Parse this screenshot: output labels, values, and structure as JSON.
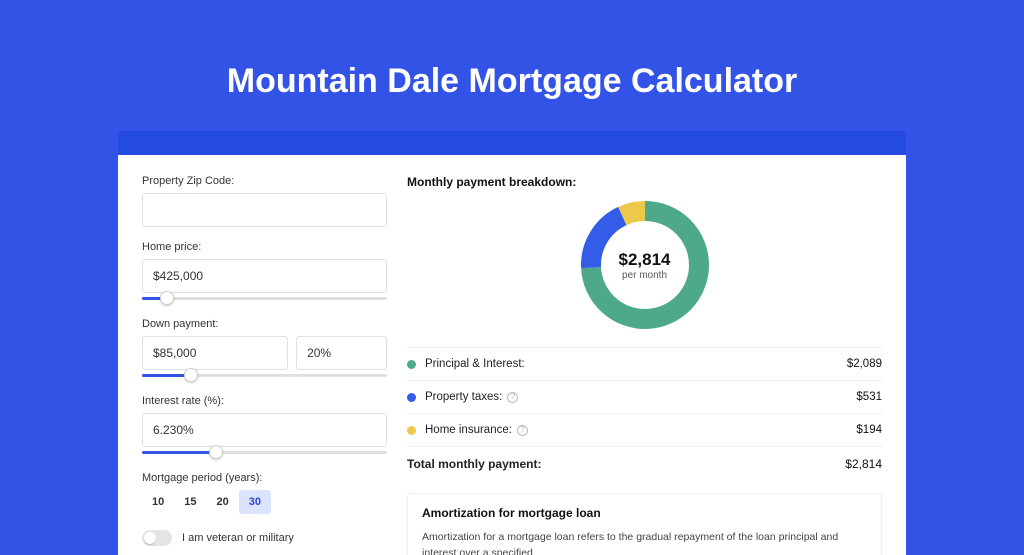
{
  "page": {
    "title": "Mountain Dale Mortgage Calculator",
    "background_color": "#3353e7",
    "band_color": "#244ae0"
  },
  "form": {
    "zip": {
      "label": "Property Zip Code:",
      "value": ""
    },
    "price": {
      "label": "Home price:",
      "value": "$425,000",
      "slider_pct": 10
    },
    "down": {
      "label": "Down payment:",
      "value": "$85,000",
      "pct_value": "20%",
      "slider_pct": 20
    },
    "rate": {
      "label": "Interest rate (%):",
      "value": "6.230%",
      "slider_pct": 30
    },
    "period": {
      "label": "Mortgage period (years):",
      "options": [
        "10",
        "15",
        "20",
        "30"
      ],
      "active": 3
    },
    "veteran": {
      "label": "I am veteran or military",
      "on": false
    }
  },
  "breakdown": {
    "title": "Monthly payment breakdown:",
    "donut": {
      "amount": "$2,814",
      "sub": "per month",
      "radius": 64,
      "stroke": 20,
      "slices": [
        {
          "color": "#4ea98a",
          "value": 2089
        },
        {
          "color": "#335de8",
          "value": 531
        },
        {
          "color": "#ecc94b",
          "value": 194
        }
      ]
    },
    "lines": [
      {
        "color": "#4ea98a",
        "label": "Principal & Interest:",
        "value": "$2,089",
        "info": false
      },
      {
        "color": "#335de8",
        "label": "Property taxes:",
        "value": "$531",
        "info": true
      },
      {
        "color": "#ecc94b",
        "label": "Home insurance:",
        "value": "$194",
        "info": true
      }
    ],
    "total": {
      "label": "Total monthly payment:",
      "value": "$2,814"
    }
  },
  "amort": {
    "title": "Amortization for mortgage loan",
    "text": "Amortization for a mortgage loan refers to the gradual repayment of the loan principal and interest over a specified"
  }
}
